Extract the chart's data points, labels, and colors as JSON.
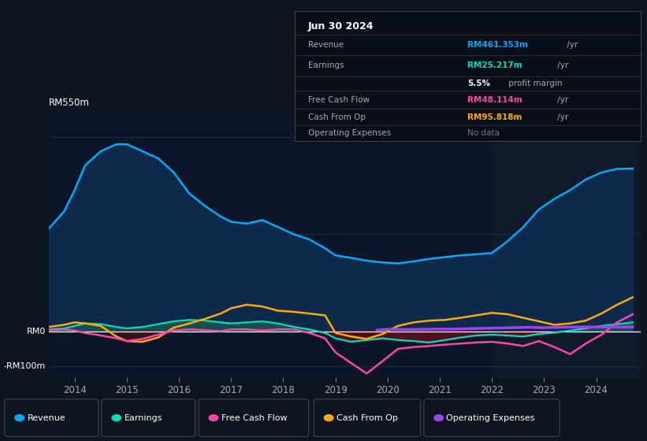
{
  "bg_color": "#0d1520",
  "plot_bg": "#0a1628",
  "title": "Jun 30 2024",
  "ylabel_top": "RM550m",
  "ylabel_zero": "RM0",
  "ylabel_bottom": "-RM100m",
  "ylim": [
    -130,
    620
  ],
  "xlim": [
    2013.5,
    2024.85
  ],
  "xticks": [
    2014,
    2015,
    2016,
    2017,
    2018,
    2019,
    2020,
    2021,
    2022,
    2023,
    2024
  ],
  "revenue_color": "#00aaff",
  "earnings_color": "#00ddbb",
  "fcf_color": "#ff44aa",
  "cashop_color": "#ffaa00",
  "opex_color": "#9944ee",
  "revenue_fill": "#0d2a4a",
  "revenue_x": [
    2013.5,
    2013.8,
    2014.0,
    2014.2,
    2014.5,
    2014.8,
    2015.0,
    2015.3,
    2015.6,
    2015.9,
    2016.2,
    2016.5,
    2016.8,
    2017.0,
    2017.3,
    2017.6,
    2017.9,
    2018.2,
    2018.5,
    2018.8,
    2019.0,
    2019.3,
    2019.6,
    2019.9,
    2020.2,
    2020.5,
    2020.8,
    2021.1,
    2021.4,
    2021.7,
    2022.0,
    2022.3,
    2022.6,
    2022.9,
    2023.2,
    2023.5,
    2023.8,
    2024.1,
    2024.4,
    2024.7
  ],
  "revenue_y": [
    290,
    340,
    400,
    470,
    510,
    530,
    530,
    510,
    490,
    450,
    390,
    355,
    325,
    310,
    305,
    315,
    295,
    275,
    260,
    235,
    215,
    208,
    200,
    195,
    192,
    198,
    205,
    210,
    215,
    218,
    222,
    255,
    295,
    345,
    375,
    400,
    430,
    450,
    460,
    461
  ],
  "earnings_x": [
    2013.5,
    2013.8,
    2014.0,
    2014.2,
    2014.5,
    2014.8,
    2015.0,
    2015.3,
    2015.6,
    2015.9,
    2016.2,
    2016.5,
    2016.8,
    2017.0,
    2017.3,
    2017.6,
    2017.9,
    2018.2,
    2018.5,
    2018.8,
    2019.0,
    2019.3,
    2019.6,
    2019.9,
    2020.2,
    2020.5,
    2020.8,
    2021.1,
    2021.4,
    2021.7,
    2022.0,
    2022.3,
    2022.6,
    2022.9,
    2023.2,
    2023.5,
    2023.8,
    2024.1,
    2024.4,
    2024.7
  ],
  "earnings_y": [
    5,
    8,
    15,
    22,
    20,
    12,
    8,
    12,
    20,
    28,
    32,
    30,
    25,
    22,
    25,
    28,
    22,
    12,
    5,
    -5,
    -20,
    -30,
    -25,
    -20,
    -25,
    -28,
    -32,
    -25,
    -18,
    -12,
    -10,
    -12,
    -15,
    -8,
    -4,
    2,
    8,
    15,
    20,
    25
  ],
  "fcf_x": [
    2013.5,
    2013.8,
    2014.0,
    2014.2,
    2014.5,
    2014.8,
    2015.0,
    2015.3,
    2015.6,
    2015.9,
    2016.2,
    2016.5,
    2016.8,
    2017.0,
    2017.3,
    2017.6,
    2017.9,
    2018.2,
    2018.5,
    2018.8,
    2019.0,
    2019.3,
    2019.6,
    2019.9,
    2020.2,
    2020.5,
    2020.8,
    2021.1,
    2021.4,
    2021.7,
    2022.0,
    2022.3,
    2022.6,
    2022.9,
    2023.2,
    2023.5,
    2023.8,
    2024.1,
    2024.4,
    2024.7
  ],
  "fcf_y": [
    2,
    5,
    2,
    -5,
    -12,
    -20,
    -28,
    -22,
    -10,
    2,
    5,
    3,
    0,
    5,
    5,
    2,
    5,
    5,
    -5,
    -20,
    -60,
    -90,
    -120,
    -85,
    -50,
    -45,
    -42,
    -38,
    -35,
    -32,
    -30,
    -35,
    -42,
    -28,
    -45,
    -65,
    -35,
    -10,
    25,
    48
  ],
  "cashop_x": [
    2013.5,
    2013.8,
    2014.0,
    2014.2,
    2014.5,
    2014.8,
    2015.0,
    2015.3,
    2015.6,
    2015.9,
    2016.2,
    2016.5,
    2016.8,
    2017.0,
    2017.3,
    2017.6,
    2017.9,
    2018.2,
    2018.5,
    2018.8,
    2019.0,
    2019.3,
    2019.6,
    2019.9,
    2020.2,
    2020.5,
    2020.8,
    2021.1,
    2021.4,
    2021.7,
    2022.0,
    2022.3,
    2022.6,
    2022.9,
    2023.2,
    2023.5,
    2023.8,
    2024.1,
    2024.4,
    2024.7
  ],
  "cashop_y": [
    12,
    18,
    25,
    22,
    15,
    -15,
    -28,
    -30,
    -18,
    10,
    22,
    35,
    50,
    65,
    75,
    70,
    58,
    55,
    50,
    45,
    -5,
    -15,
    -22,
    -8,
    15,
    25,
    30,
    32,
    38,
    45,
    52,
    48,
    38,
    28,
    18,
    22,
    30,
    50,
    75,
    96
  ],
  "opex_x": [
    2019.8,
    2020.0,
    2020.3,
    2020.6,
    2020.9,
    2021.2,
    2021.5,
    2021.8,
    2022.1,
    2022.4,
    2022.7,
    2023.0,
    2023.3,
    2023.6,
    2023.9,
    2024.2,
    2024.5,
    2024.7
  ],
  "opex_y": [
    3,
    5,
    5,
    5,
    6,
    6,
    7,
    8,
    9,
    10,
    11,
    10,
    11,
    12,
    12,
    12,
    12,
    12
  ],
  "legend_items": [
    {
      "label": "Revenue",
      "color": "#00aaff"
    },
    {
      "label": "Earnings",
      "color": "#00ddbb"
    },
    {
      "label": "Free Cash Flow",
      "color": "#ff44aa"
    },
    {
      "label": "Cash From Op",
      "color": "#ffaa00"
    },
    {
      "label": "Operating Expenses",
      "color": "#9944ee"
    }
  ]
}
